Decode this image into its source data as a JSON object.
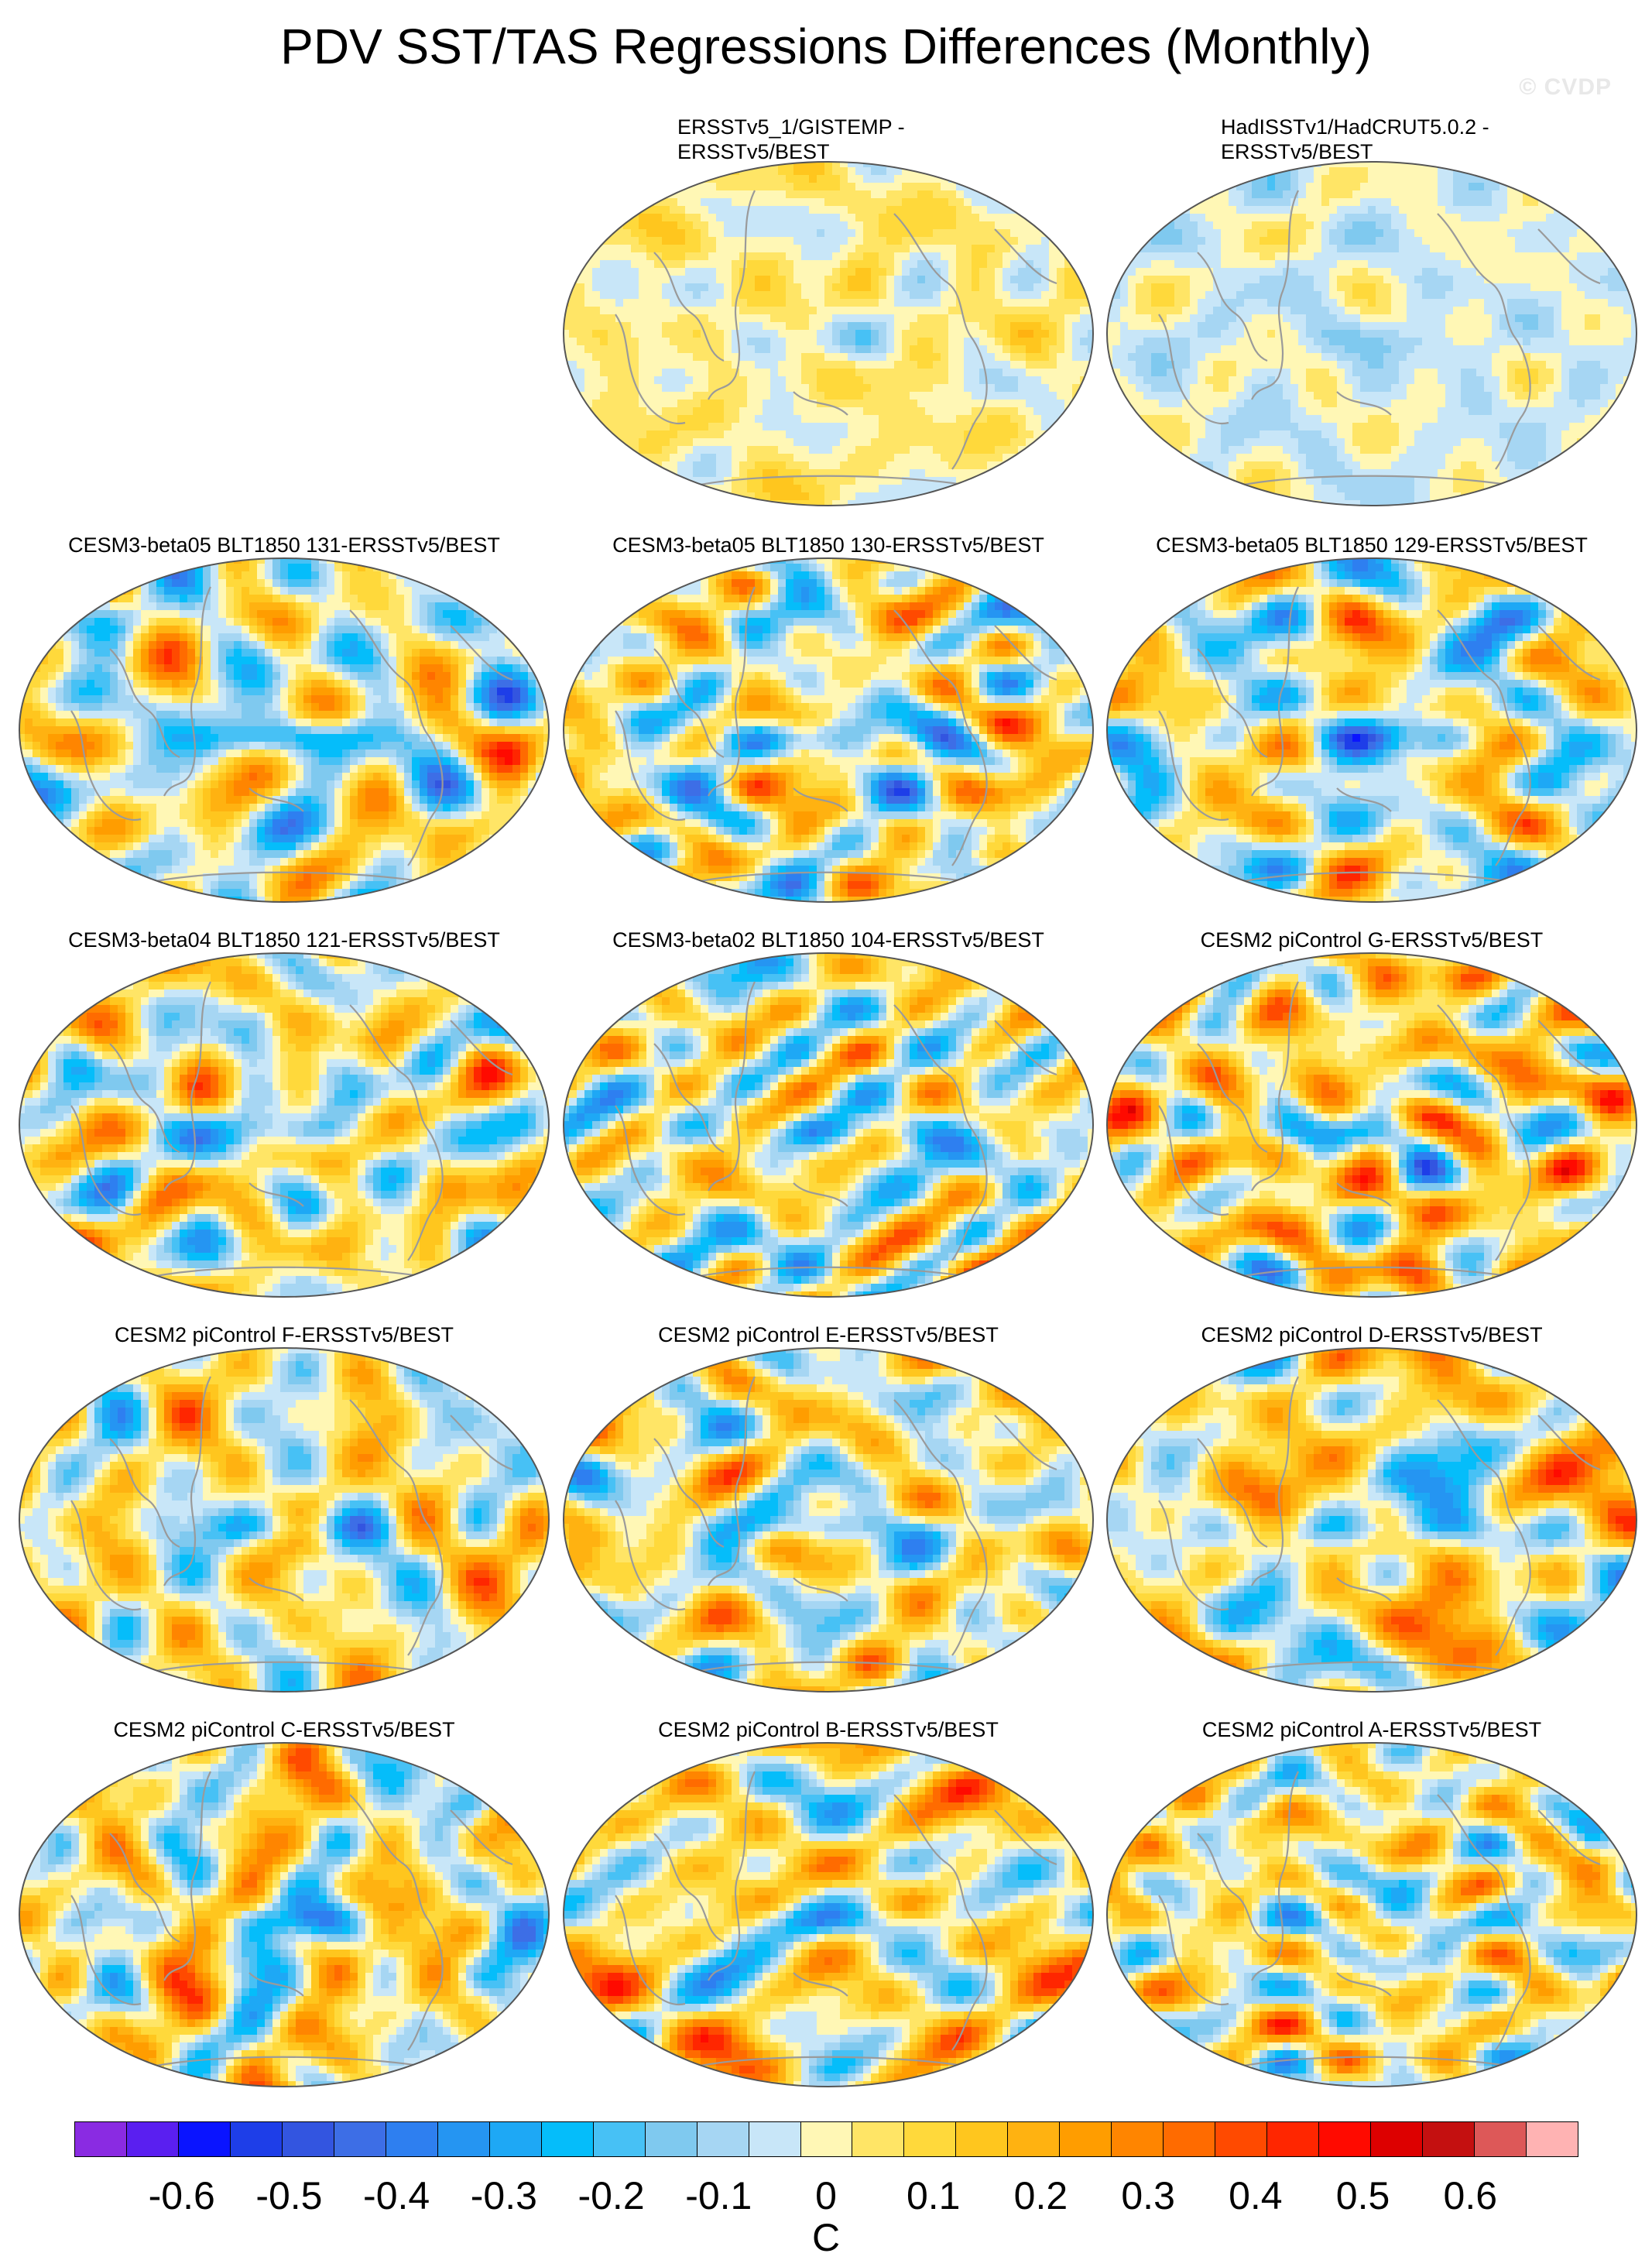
{
  "title": "PDV SST/TAS Regressions Differences (Monthly)",
  "watermark": "© CVDP",
  "panels": [
    {
      "label": "ERSSTv5_1/GISTEMP -\nERSSTv5/BEST",
      "row": 0,
      "col": 1,
      "seed": 11,
      "bias": 0.02,
      "amp": 0.12
    },
    {
      "label": "HadISSTv1/HadCRUT5.0.2 -\nERSSTv5/BEST",
      "row": 0,
      "col": 2,
      "seed": 23,
      "bias": -0.03,
      "amp": 0.1
    },
    {
      "label": "CESM3-beta05 BLT1850 131-ERSSTv5/BEST",
      "row": 1,
      "col": 0,
      "seed": 37,
      "bias": 0.0,
      "amp": 0.36
    },
    {
      "label": "CESM3-beta05 BLT1850 130-ERSSTv5/BEST",
      "row": 1,
      "col": 1,
      "seed": 41,
      "bias": 0.01,
      "amp": 0.38
    },
    {
      "label": "CESM3-beta05 BLT1850 129-ERSSTv5/BEST",
      "row": 1,
      "col": 2,
      "seed": 53,
      "bias": 0.0,
      "amp": 0.34
    },
    {
      "label": "CESM3-beta04 BLT1850 121-ERSSTv5/BEST",
      "row": 2,
      "col": 0,
      "seed": 61,
      "bias": 0.02,
      "amp": 0.3
    },
    {
      "label": "CESM3-beta02 BLT1850 104-ERSSTv5/BEST",
      "row": 2,
      "col": 1,
      "seed": 71,
      "bias": 0.01,
      "amp": 0.36
    },
    {
      "label": "CESM2 piControl G-ERSSTv5/BEST",
      "row": 2,
      "col": 2,
      "seed": 83,
      "bias": 0.08,
      "amp": 0.4
    },
    {
      "label": "CESM2 piControl F-ERSSTv5/BEST",
      "row": 3,
      "col": 0,
      "seed": 97,
      "bias": 0.03,
      "amp": 0.34
    },
    {
      "label": "CESM2 piControl E-ERSSTv5/BEST",
      "row": 3,
      "col": 1,
      "seed": 101,
      "bias": 0.02,
      "amp": 0.33
    },
    {
      "label": "CESM2 piControl D-ERSSTv5/BEST",
      "row": 3,
      "col": 2,
      "seed": 113,
      "bias": 0.04,
      "amp": 0.35
    },
    {
      "label": "CESM2 piControl C-ERSSTv5/BEST",
      "row": 4,
      "col": 0,
      "seed": 127,
      "bias": 0.04,
      "amp": 0.36
    },
    {
      "label": "CESM2 piControl B-ERSSTv5/BEST",
      "row": 4,
      "col": 1,
      "seed": 131,
      "bias": 0.04,
      "amp": 0.36
    },
    {
      "label": "CESM2 piControl A-ERSSTv5/BEST",
      "row": 4,
      "col": 2,
      "seed": 139,
      "bias": 0.03,
      "amp": 0.34
    }
  ],
  "colorbar": {
    "units": "C",
    "colors": [
      "#8a2be2",
      "#5a1ff0",
      "#0a14ff",
      "#1e3ee8",
      "#3355e0",
      "#3d6ee6",
      "#2e7ff0",
      "#2595f2",
      "#1ea8f5",
      "#05bdfa",
      "#47c1f5",
      "#7fc9ef",
      "#a6d6f3",
      "#c8e6f8",
      "#fff7b5",
      "#ffe566",
      "#ffd93b",
      "#ffc61e",
      "#ffb211",
      "#ff9d00",
      "#ff8500",
      "#ff6b00",
      "#ff4a00",
      "#ff2600",
      "#ff0a00",
      "#dd0000",
      "#c41010",
      "#dd5858",
      "#ffb3b3"
    ],
    "ticks": [
      "-0.6",
      "-0.5",
      "-0.4",
      "-0.3",
      "-0.2",
      "-0.1",
      "0",
      "0.1",
      "0.2",
      "0.3",
      "0.4",
      "0.5",
      "0.6"
    ],
    "tick_values": [
      -0.6,
      -0.5,
      -0.4,
      -0.3,
      -0.2,
      -0.1,
      0,
      0.1,
      0.2,
      0.3,
      0.4,
      0.5,
      0.6
    ],
    "min": -0.7,
    "max": 0.7
  }
}
